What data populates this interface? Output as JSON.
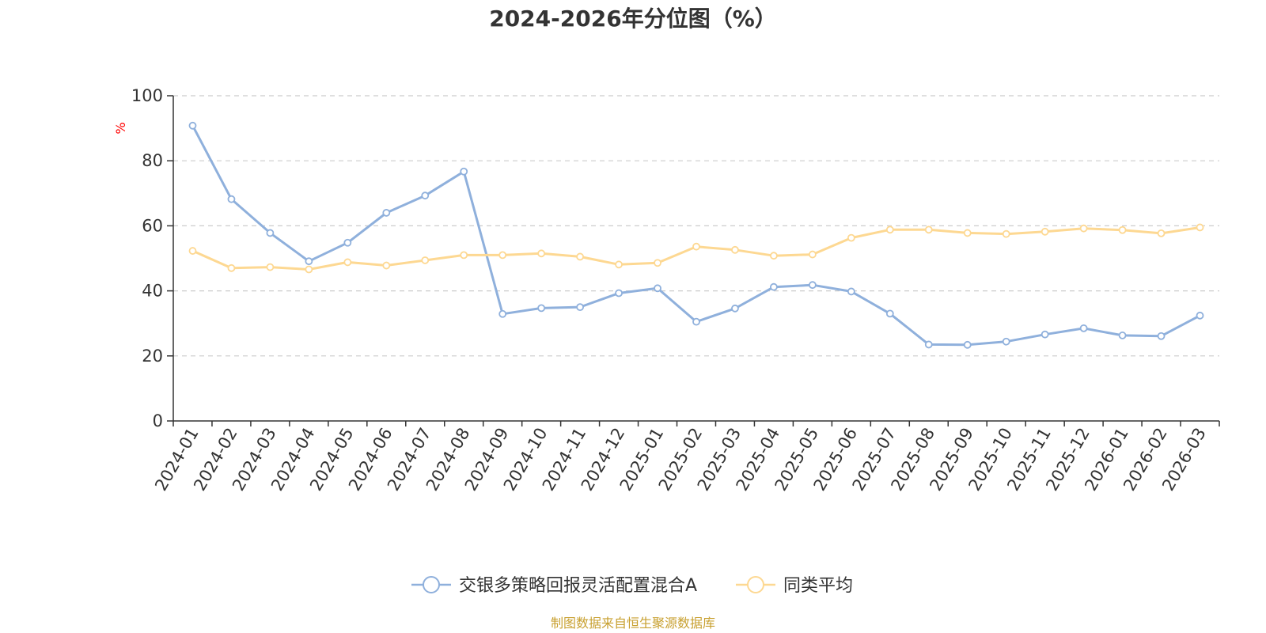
{
  "chart_data": {
    "type": "line",
    "title": "2024-2026年分位图（%）",
    "ylabel": "%",
    "xlabel": "",
    "ylim": [
      0,
      100
    ],
    "yticks": [
      0,
      20,
      40,
      60,
      80,
      100
    ],
    "grid": true,
    "legend_position": "bottom-center",
    "categories": [
      "2024-01",
      "2024-02",
      "2024-03",
      "2024-04",
      "2024-05",
      "2024-06",
      "2024-07",
      "2024-08",
      "2024-09",
      "2024-10",
      "2024-11",
      "2024-12",
      "2025-01",
      "2025-02",
      "2025-03",
      "2025-04",
      "2025-05",
      "2025-06",
      "2025-07",
      "2025-08",
      "2025-09",
      "2025-10",
      "2025-11",
      "2025-12",
      "2026-01",
      "2026-02",
      "2026-03"
    ],
    "series": [
      {
        "name": "交银多策略回报灵活配置混合A",
        "color": "#8fb0dc",
        "values": [
          90.8,
          68.2,
          57.8,
          49.1,
          54.8,
          64.0,
          69.3,
          76.7,
          32.9,
          34.7,
          35.0,
          39.3,
          40.8,
          30.5,
          34.6,
          41.2,
          41.8,
          39.8,
          33.0,
          23.5,
          23.4,
          24.4,
          26.6,
          28.5,
          26.3,
          26.1,
          32.4
        ]
      },
      {
        "name": "同类平均",
        "color": "#fdd892",
        "values": [
          52.3,
          47.0,
          47.3,
          46.6,
          48.8,
          47.8,
          49.4,
          51.0,
          51.0,
          51.5,
          50.5,
          48.1,
          48.6,
          53.6,
          52.6,
          50.8,
          51.2,
          56.3,
          58.8,
          58.8,
          57.8,
          57.5,
          58.2,
          59.2,
          58.7,
          57.7,
          59.5
        ]
      }
    ]
  },
  "source_text": "制图数据来自恒生聚源数据库",
  "colors": {
    "axis": "#333333",
    "grid": "#cccccc",
    "unit": "#ff0000",
    "source": "#c8a030"
  }
}
